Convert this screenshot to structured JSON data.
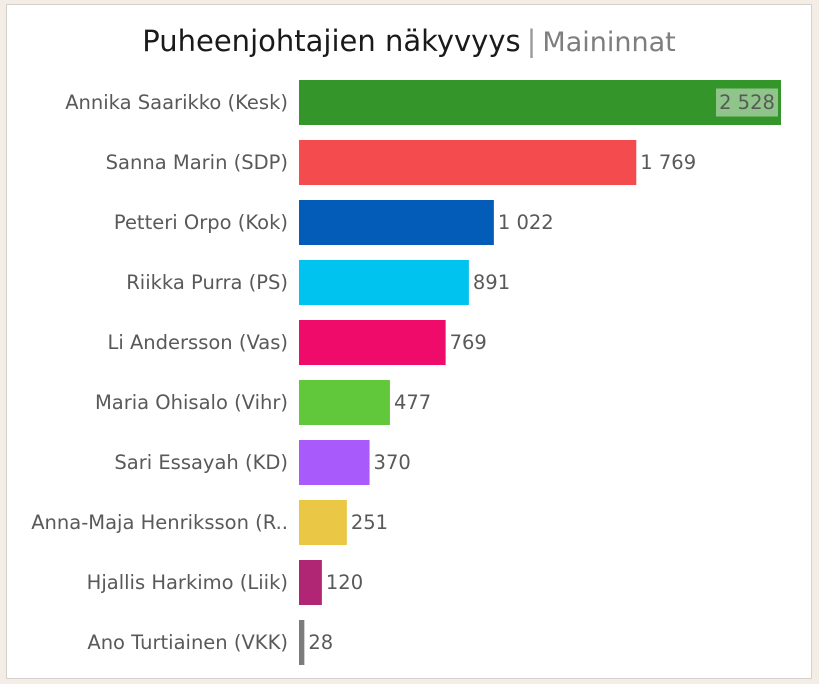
{
  "title": {
    "main": "Puheenjohtajien näkyvyys",
    "separator": "|",
    "subtitle": "Maininnat"
  },
  "chart_data": {
    "type": "bar",
    "orientation": "horizontal",
    "categories": [
      "Annika Saarikko (Kesk)",
      "Sanna Marin (SDP)",
      "Petteri Orpo (Kok)",
      "Riikka Purra (PS)",
      "Li Andersson (Vas)",
      "Maria Ohisalo (Vihr)",
      "Sari Essayah (KD)",
      "Anna-Maja Henriksson (R..",
      "Hjallis Harkimo (Liik)",
      "Ano Turtiainen (VKK)"
    ],
    "values": [
      2528,
      1769,
      1022,
      891,
      769,
      477,
      370,
      251,
      120,
      28
    ],
    "value_labels": [
      "2 528",
      "1 769",
      "1 022",
      "891",
      "769",
      "477",
      "370",
      "251",
      "120",
      "28"
    ],
    "colors": [
      "#34962a",
      "#f44c4e",
      "#035cb7",
      "#00c3ef",
      "#ee0b6a",
      "#61c83c",
      "#a95afa",
      "#eac744",
      "#b02674",
      "#7c7c7c"
    ],
    "highlighted_index": 0,
    "xlim": [
      0,
      2528
    ],
    "grid": false,
    "legend": "none",
    "xlabel": "",
    "ylabel": ""
  }
}
